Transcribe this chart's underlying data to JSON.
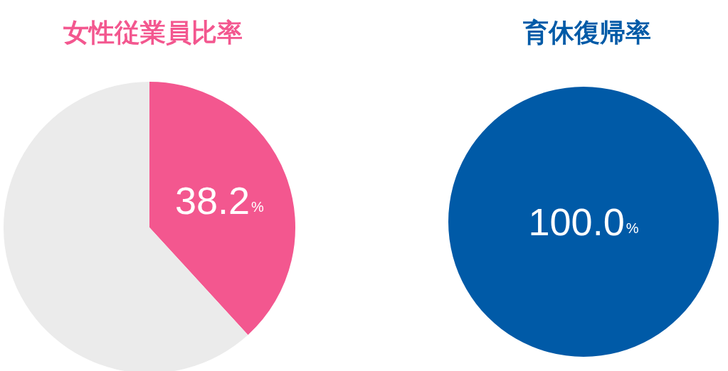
{
  "chart_data": [
    {
      "type": "pie",
      "title": "女性従業員比率",
      "categories": [
        null,
        null
      ],
      "values": [
        38.2,
        61.8
      ],
      "colors": [
        "#f3578f",
        "#ebebeb"
      ],
      "value_labels": [
        "38.2%",
        null
      ]
    },
    {
      "type": "pie",
      "title": "育休復帰率",
      "categories": [
        null
      ],
      "values": [
        100
      ],
      "colors": [
        "#005aa7"
      ],
      "value_labels": [
        "100.0%"
      ]
    }
  ]
}
